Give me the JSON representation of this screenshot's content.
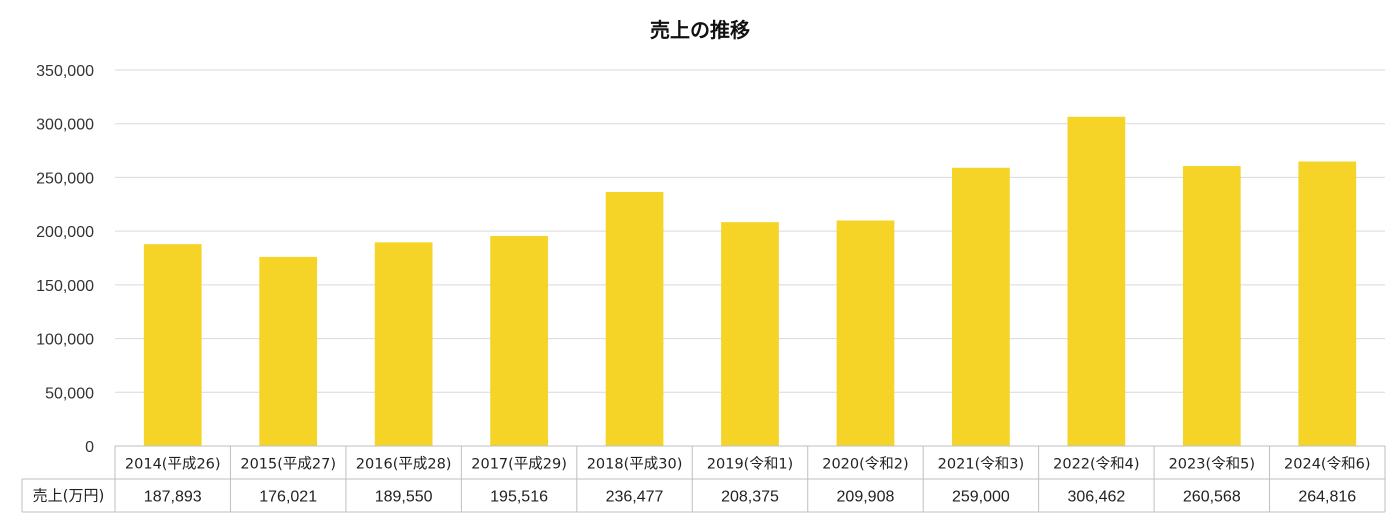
{
  "chart_data": {
    "type": "bar",
    "title": "売上の推移",
    "categories": [
      "2014(平成26)",
      "2015(平成27)",
      "2016(平成28)",
      "2017(平成29)",
      "2018(平成30)",
      "2019(令和1)",
      "2020(令和2)",
      "2021(令和3)",
      "2022(令和4)",
      "2023(令和5)",
      "2024(令和6)"
    ],
    "series": [
      {
        "name": "売上(万円)",
        "values": [
          187893,
          176021,
          189550,
          195516,
          236477,
          208375,
          209908,
          259000,
          306462,
          260568,
          264816
        ],
        "value_labels": [
          "187,893",
          "176,021",
          "189,550",
          "195,516",
          "236,477",
          "208,375",
          "209,908",
          "259,000",
          "306,462",
          "260,568",
          "264,816"
        ]
      }
    ],
    "ylim": [
      0,
      350000
    ],
    "yticks": [
      0,
      50000,
      100000,
      150000,
      200000,
      250000,
      300000,
      350000
    ],
    "ytick_labels": [
      "0",
      "50,000",
      "100,000",
      "150,000",
      "200,000",
      "250,000",
      "300,000",
      "350,000"
    ],
    "grid": true,
    "bar_color": "#F5D327",
    "data_table": true
  }
}
